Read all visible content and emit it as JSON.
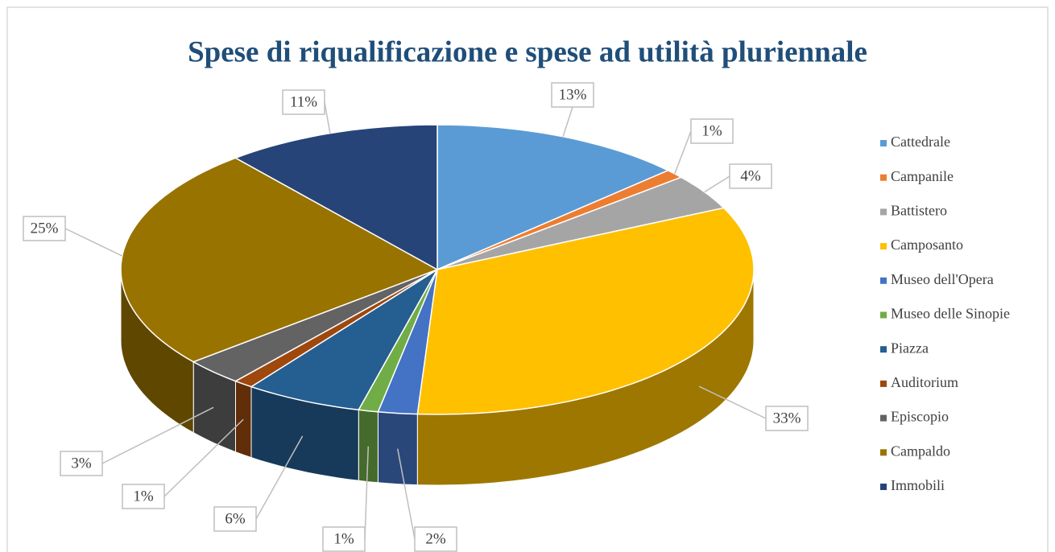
{
  "chart_data": {
    "type": "pie",
    "title": "Spese di riqualificazione e spese ad utilità pluriennale",
    "categories": [
      "Cattedrale",
      "Campanile",
      "Battistero",
      "Camposanto",
      "Museo dell'Opera",
      "Museo delle Sinopie",
      "Piazza",
      "Auditorium",
      "Episcopio",
      "Campaldo",
      "Immobili"
    ],
    "values": [
      13,
      1,
      4,
      33,
      2,
      1,
      6,
      1,
      3,
      25,
      11
    ],
    "value_labels": [
      "13%",
      "1%",
      "4%",
      "33%",
      "2%",
      "1%",
      "6%",
      "1%",
      "3%",
      "25%",
      "11%"
    ],
    "colors": [
      "#5b9bd5",
      "#ed7d31",
      "#a5a5a5",
      "#ffc000",
      "#4472c4",
      "#70ad47",
      "#255e91",
      "#9e480e",
      "#636363",
      "#997300",
      "#264478"
    ],
    "legend": "right"
  }
}
